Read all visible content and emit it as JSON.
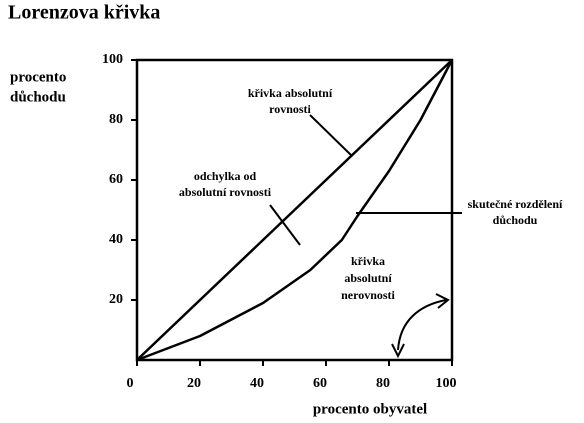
{
  "chart_data": {
    "type": "line",
    "title": "Lorenzova křivka",
    "y_label": [
      "procento",
      "důchodu"
    ],
    "x_label": "procento obyvatel",
    "xlim": [
      0,
      100
    ],
    "ylim": [
      0,
      100
    ],
    "xticks": [
      0,
      20,
      40,
      60,
      80,
      100
    ],
    "yticks": [
      20,
      40,
      60,
      80,
      100
    ],
    "series": [
      {
        "name": "křivka absolutní rovnosti",
        "color": "#000000",
        "x": [
          0,
          100
        ],
        "values": [
          0,
          100
        ]
      },
      {
        "name": "skutečné rozdělení důchodu",
        "color": "#000000",
        "x": [
          0,
          20,
          40,
          55,
          65,
          70,
          80,
          90,
          100
        ],
        "values": [
          0,
          8,
          19,
          30,
          40,
          48,
          63,
          80,
          100
        ]
      }
    ],
    "annotations": [
      [
        "křivka absolutní",
        "rovnosti"
      ],
      [
        "odchylka od",
        "absolutní rovnosti"
      ],
      [
        "skutečné rozdělení",
        "důchodu"
      ],
      [
        "křivka",
        "absolutní",
        "nerovnosti"
      ]
    ]
  }
}
